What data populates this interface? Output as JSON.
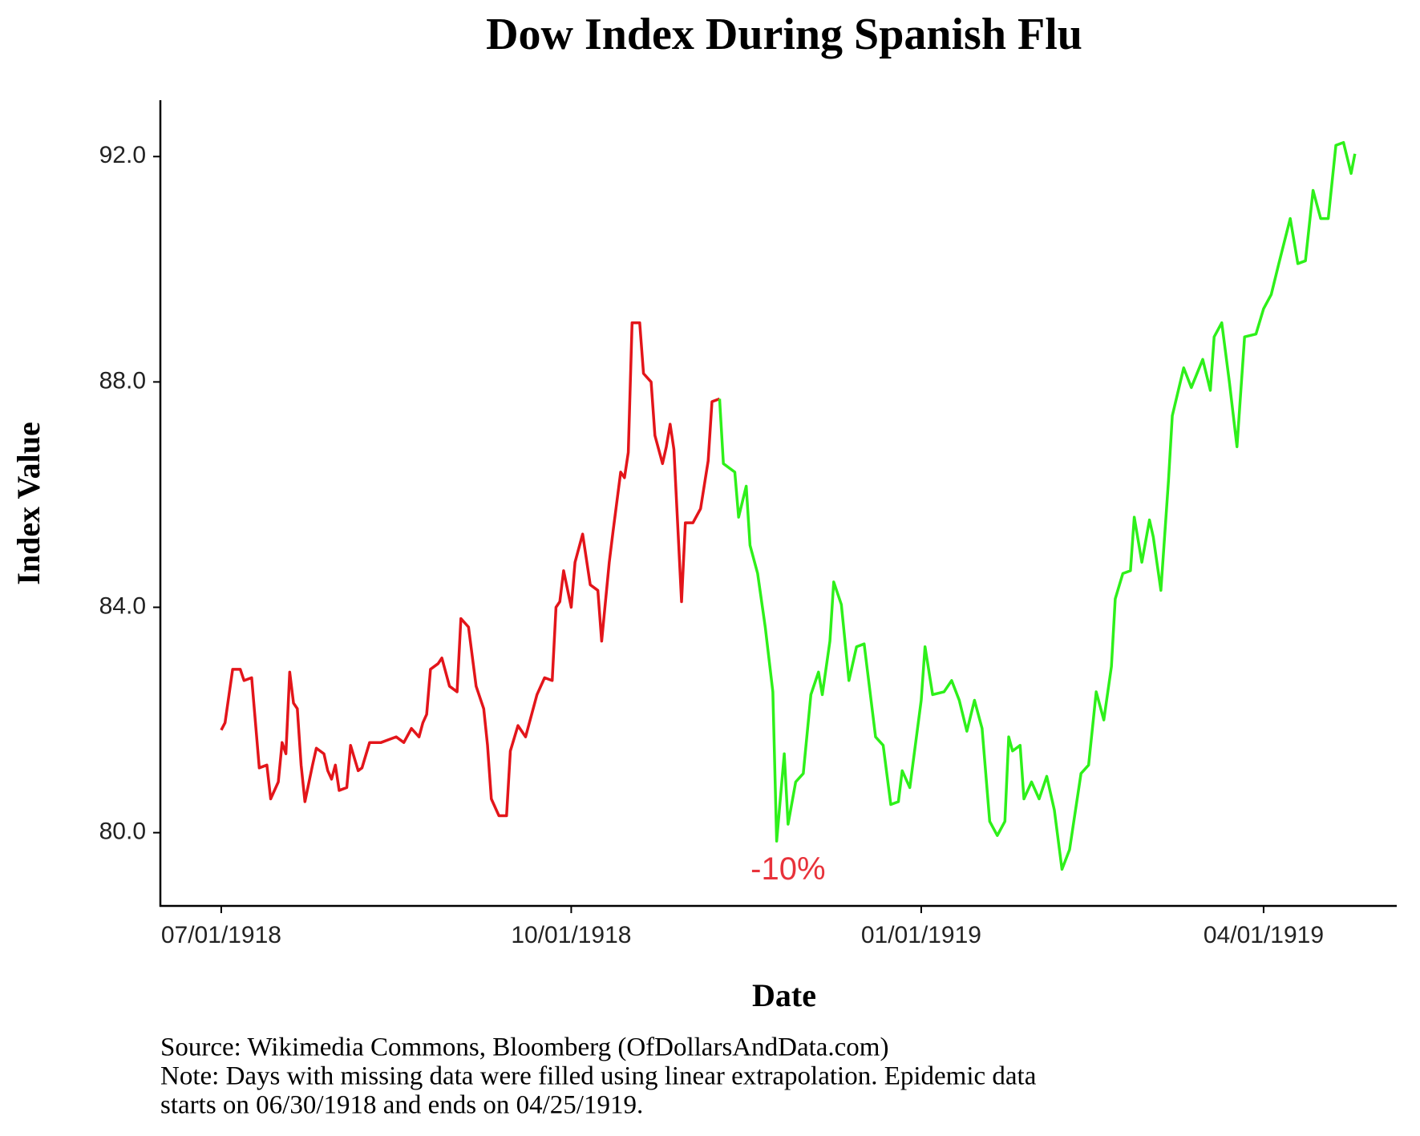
{
  "chart_data": {
    "type": "line",
    "title": "Dow Index During Spanish Flu",
    "x_label": "Date",
    "y_label": "Index Value",
    "caption": [
      "Source: Wikimedia Commons, Bloomberg (OfDollarsAndData.com)",
      "Note: Days with missing data were filled using linear extrapolation. Epidemic data",
      "starts on 06/30/1918 and ends on 04/25/1919."
    ],
    "xlim": [
      "1918-06-15",
      "1919-05-06"
    ],
    "xticks": [
      {
        "value": "1918-07-01",
        "label": "07/01/1918"
      },
      {
        "value": "1918-10-01",
        "label": "10/01/1918"
      },
      {
        "value": "1919-01-01",
        "label": "01/01/1919"
      },
      {
        "value": "1919-04-01",
        "label": "04/01/1919"
      }
    ],
    "ylim": [
      78.7,
      93.0
    ],
    "yticks": [
      {
        "value": 80,
        "label": "80.0"
      },
      {
        "value": 84,
        "label": "84.0"
      },
      {
        "value": 88,
        "label": "88.0"
      },
      {
        "value": 92,
        "label": "92.0"
      }
    ],
    "grid": false,
    "annotation": {
      "text": "-10%",
      "x": "1918-11-27",
      "y": 79.32,
      "color": "#e8323a"
    },
    "series": [
      {
        "color": "#e3151a",
        "x": [
          "1918-07-01",
          "1918-07-02",
          "1918-07-04",
          "1918-07-06",
          "1918-07-07",
          "1918-07-09",
          "1918-07-11",
          "1918-07-13",
          "1918-07-14",
          "1918-07-16",
          "1918-07-17",
          "1918-07-18",
          "1918-07-19",
          "1918-07-20",
          "1918-07-21",
          "1918-07-22",
          "1918-07-23",
          "1918-07-25",
          "1918-07-26",
          "1918-07-28",
          "1918-07-29",
          "1918-07-30",
          "1918-07-31",
          "1918-08-01",
          "1918-08-03",
          "1918-08-04",
          "1918-08-06",
          "1918-08-07",
          "1918-08-09",
          "1918-08-12",
          "1918-08-14",
          "1918-08-16",
          "1918-08-18",
          "1918-08-20",
          "1918-08-22",
          "1918-08-23",
          "1918-08-24",
          "1918-08-25",
          "1918-08-27",
          "1918-08-28",
          "1918-08-30",
          "1918-09-01",
          "1918-09-02",
          "1918-09-04",
          "1918-09-06",
          "1918-09-08",
          "1918-09-09",
          "1918-09-10",
          "1918-09-12",
          "1918-09-14",
          "1918-09-15",
          "1918-09-17",
          "1918-09-19",
          "1918-09-20",
          "1918-09-22",
          "1918-09-24",
          "1918-09-26",
          "1918-09-27",
          "1918-09-28",
          "1918-09-29",
          "1918-10-01",
          "1918-10-02",
          "1918-10-04",
          "1918-10-06",
          "1918-10-08",
          "1918-10-09",
          "1918-10-11",
          "1918-10-12",
          "1918-10-14",
          "1918-10-15",
          "1918-10-16",
          "1918-10-17",
          "1918-10-19",
          "1918-10-20",
          "1918-10-22",
          "1918-10-23",
          "1918-10-25",
          "1918-10-26",
          "1918-10-27",
          "1918-10-28",
          "1918-10-30",
          "1918-10-31",
          "1918-11-02",
          "1918-11-04",
          "1918-11-06",
          "1918-11-07",
          "1918-11-09"
        ],
        "values": [
          81.82,
          81.95,
          82.9,
          82.9,
          82.7,
          82.75,
          81.15,
          81.2,
          80.6,
          80.9,
          81.6,
          81.4,
          82.85,
          82.3,
          82.2,
          81.2,
          80.55,
          81.2,
          81.5,
          81.4,
          81.1,
          80.95,
          81.2,
          80.75,
          80.8,
          81.55,
          81.1,
          81.15,
          81.6,
          81.6,
          81.65,
          81.7,
          81.6,
          81.85,
          81.7,
          81.95,
          82.1,
          82.9,
          83.0,
          83.1,
          82.6,
          82.5,
          83.8,
          83.65,
          82.6,
          82.2,
          81.55,
          80.6,
          80.3,
          80.3,
          81.45,
          81.9,
          81.7,
          81.95,
          82.45,
          82.75,
          82.7,
          84.0,
          84.1,
          84.65,
          84.0,
          84.8,
          85.3,
          84.4,
          84.3,
          83.4,
          84.8,
          85.35,
          86.4,
          86.3,
          86.75,
          89.05,
          89.05,
          88.15,
          88.0,
          87.05,
          86.55,
          86.85,
          87.25,
          86.8,
          84.1,
          85.5,
          85.5,
          85.75,
          86.6,
          87.65,
          87.7
        ]
      },
      {
        "color": "#2ef01a",
        "x": [
          "1918-11-09",
          "1918-11-10",
          "1918-11-13",
          "1918-11-14",
          "1918-11-16",
          "1918-11-17",
          "1918-11-19",
          "1918-11-21",
          "1918-11-23",
          "1918-11-24",
          "1918-11-26",
          "1918-11-27",
          "1918-11-29",
          "1918-12-01",
          "1918-12-03",
          "1918-12-05",
          "1918-12-06",
          "1918-12-08",
          "1918-12-09",
          "1918-12-11",
          "1918-12-13",
          "1918-12-15",
          "1918-12-17",
          "1918-12-20",
          "1918-12-22",
          "1918-12-24",
          "1918-12-26",
          "1918-12-27",
          "1918-12-29",
          "1919-01-01",
          "1919-01-02",
          "1919-01-04",
          "1919-01-07",
          "1919-01-09",
          "1919-01-11",
          "1919-01-13",
          "1919-01-15",
          "1919-01-17",
          "1919-01-19",
          "1919-01-21",
          "1919-01-23",
          "1919-01-24",
          "1919-01-25",
          "1919-01-27",
          "1919-01-28",
          "1919-01-30",
          "1919-02-01",
          "1919-02-03",
          "1919-02-05",
          "1919-02-07",
          "1919-02-09",
          "1919-02-12",
          "1919-02-14",
          "1919-02-16",
          "1919-02-18",
          "1919-02-20",
          "1919-02-21",
          "1919-02-23",
          "1919-02-25",
          "1919-02-26",
          "1919-02-28",
          "1919-03-02",
          "1919-03-03",
          "1919-03-05",
          "1919-03-07",
          "1919-03-08",
          "1919-03-11",
          "1919-03-13",
          "1919-03-16",
          "1919-03-18",
          "1919-03-19",
          "1919-03-21",
          "1919-03-23",
          "1919-03-25",
          "1919-03-27",
          "1919-03-30",
          "1919-04-01",
          "1919-04-03",
          "1919-04-05",
          "1919-04-08",
          "1919-04-10",
          "1919-04-12",
          "1919-04-14",
          "1919-04-16",
          "1919-04-18",
          "1919-04-20",
          "1919-04-22",
          "1919-04-24",
          "1919-04-25"
        ],
        "values": [
          87.7,
          86.55,
          86.4,
          85.6,
          86.15,
          85.1,
          84.6,
          83.65,
          82.5,
          79.85,
          81.4,
          80.15,
          80.9,
          81.05,
          82.45,
          82.85,
          82.45,
          83.4,
          84.45,
          84.05,
          82.7,
          83.3,
          83.35,
          81.7,
          81.55,
          80.5,
          80.55,
          81.1,
          80.8,
          82.35,
          83.3,
          82.45,
          82.5,
          82.7,
          82.35,
          81.8,
          82.35,
          81.85,
          80.2,
          79.95,
          80.2,
          81.7,
          81.45,
          81.55,
          80.6,
          80.9,
          80.6,
          81.0,
          80.4,
          79.35,
          79.7,
          81.05,
          81.2,
          82.5,
          82.0,
          82.95,
          84.15,
          84.6,
          84.65,
          85.6,
          84.8,
          85.55,
          85.25,
          84.3,
          86.25,
          87.4,
          88.25,
          87.9,
          88.4,
          87.85,
          88.8,
          89.05,
          88.0,
          86.85,
          88.8,
          88.85,
          89.3,
          89.55,
          90.1,
          90.9,
          90.1,
          90.15,
          91.4,
          90.9,
          90.9,
          92.2,
          92.25,
          91.7,
          92.05
        ]
      }
    ]
  }
}
